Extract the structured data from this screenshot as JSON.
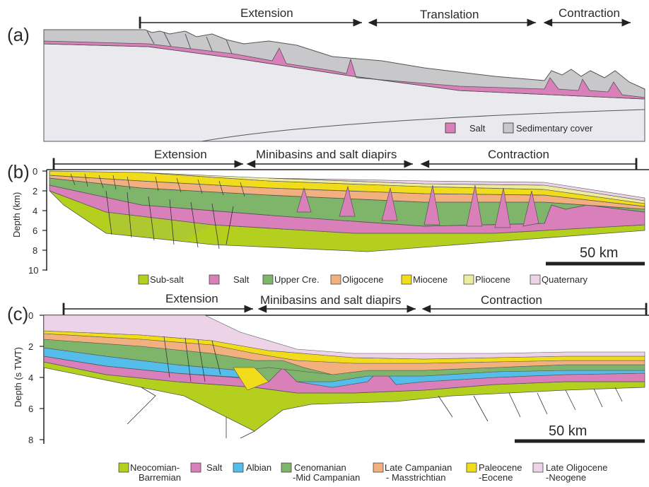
{
  "panel_a": {
    "label": "(a)",
    "domains": [
      "Extension",
      "Translation",
      "Contraction"
    ],
    "legend": [
      {
        "name": "Salt",
        "color": "#d97fb9"
      },
      {
        "name": "Sedimentary cover",
        "color": "#c8c8ca"
      }
    ]
  },
  "panel_b": {
    "label": "(b)",
    "domains": [
      "Extension",
      "Minibasins and salt diapirs",
      "Contraction"
    ],
    "y_axis_title": "Depth (km)",
    "y_ticks": [
      "0",
      "2",
      "4",
      "6",
      "8",
      "10"
    ],
    "scale_bar": "50 km",
    "legend": [
      {
        "name": "Sub-salt",
        "color": "#b5cf1e"
      },
      {
        "name": "Salt",
        "color": "#d97fb9"
      },
      {
        "name": "Upper Cre.",
        "color": "#7fb56a"
      },
      {
        "name": "Oligocene",
        "color": "#f2b07f"
      },
      {
        "name": "Miocene",
        "color": "#f0dc1a"
      },
      {
        "name": "Pliocene",
        "color": "#ecec9c"
      },
      {
        "name": "Quaternary",
        "color": "#ecd3e8"
      }
    ]
  },
  "panel_c": {
    "label": "(c)",
    "domains": [
      "Extension",
      "Minibasins and salt diapirs",
      "Contraction"
    ],
    "y_axis_title": "Depth (s TWT)",
    "y_ticks": [
      "0",
      "2",
      "4",
      "6",
      "8"
    ],
    "scale_bar": "50 km",
    "legend": [
      {
        "name": "Neocomian-",
        "name2": "Barremian",
        "color": "#b5cf1e"
      },
      {
        "name": "Salt",
        "name2": "",
        "color": "#d97fb9"
      },
      {
        "name": "Albian",
        "name2": "",
        "color": "#55bde9"
      },
      {
        "name": "Cenomanian",
        "name2": "-Mid Campanian",
        "color": "#7fb56a"
      },
      {
        "name": "Late Campanian",
        "name2": "- Masstrichtian",
        "color": "#f2b07f"
      },
      {
        "name": "Paleocene",
        "name2": "-Eocene",
        "color": "#f0dc1a"
      },
      {
        "name": "Late Oligocene",
        "name2": "-Neogene",
        "color": "#ecd3e8"
      }
    ]
  }
}
